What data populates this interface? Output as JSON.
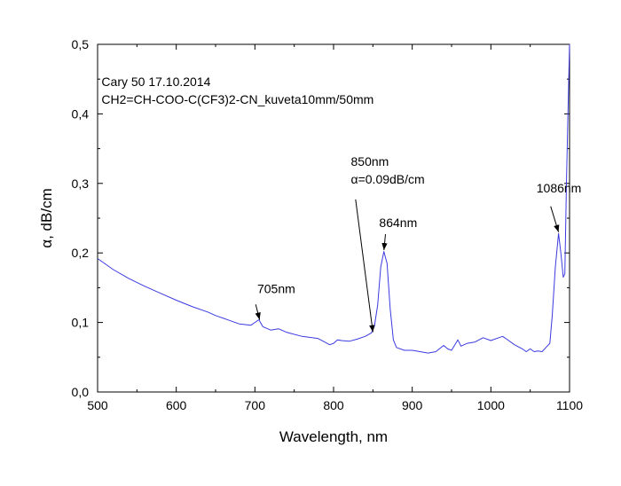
{
  "chart_data": {
    "type": "line",
    "title": "",
    "xlabel": "Wavelength, nm",
    "ylabel": "α, dB/cm",
    "xlim": [
      500,
      1100
    ],
    "ylim": [
      0.0,
      0.5
    ],
    "x_ticks": [
      500,
      600,
      700,
      800,
      900,
      1000,
      1100
    ],
    "x_tick_labels": [
      "500",
      "600",
      "700",
      "800",
      "900",
      "1000",
      "1100"
    ],
    "y_ticks": [
      0.0,
      0.1,
      0.2,
      0.3,
      0.4,
      0.5
    ],
    "y_tick_labels": [
      "0,0",
      "0,1",
      "0,2",
      "0,3",
      "0,4",
      "0,5"
    ],
    "grid": false,
    "legend": "none",
    "series": [
      {
        "name": "CH2=CH-COO-C(CF3)2-CN_kuveta10mm/50mm",
        "color": "#3a3ae0",
        "x": [
          500,
          520,
          540,
          560,
          580,
          600,
          620,
          640,
          650,
          655,
          660,
          680,
          695,
          700,
          705,
          710,
          720,
          730,
          740,
          760,
          780,
          795,
          800,
          805,
          810,
          820,
          830,
          840,
          848,
          852,
          856,
          860,
          864,
          868,
          872,
          876,
          880,
          890,
          900,
          910,
          920,
          930,
          940,
          945,
          950,
          958,
          962,
          970,
          980,
          990,
          1000,
          1010,
          1015,
          1020,
          1030,
          1040,
          1045,
          1050,
          1055,
          1060,
          1065,
          1070,
          1075,
          1078,
          1082,
          1086,
          1089,
          1092,
          1094,
          1096,
          1098,
          1100
        ],
        "values": [
          0.192,
          0.176,
          0.163,
          0.152,
          0.142,
          0.132,
          0.123,
          0.115,
          0.11,
          0.108,
          0.106,
          0.098,
          0.096,
          0.1,
          0.104,
          0.094,
          0.089,
          0.091,
          0.086,
          0.08,
          0.077,
          0.068,
          0.07,
          0.075,
          0.074,
          0.073,
          0.076,
          0.08,
          0.085,
          0.095,
          0.125,
          0.18,
          0.202,
          0.185,
          0.12,
          0.075,
          0.064,
          0.06,
          0.06,
          0.058,
          0.056,
          0.058,
          0.067,
          0.062,
          0.06,
          0.075,
          0.066,
          0.07,
          0.072,
          0.078,
          0.074,
          0.078,
          0.08,
          0.076,
          0.068,
          0.062,
          0.058,
          0.062,
          0.058,
          0.059,
          0.058,
          0.064,
          0.07,
          0.11,
          0.18,
          0.228,
          0.2,
          0.165,
          0.17,
          0.3,
          0.4,
          0.5
        ]
      }
    ],
    "annotations": [
      {
        "lines": [
          "Cary 50 17.10.2014",
          "CH2=CH-COO-C(CF3)2-CN_kuveta10mm/50mm"
        ],
        "x": 505,
        "y": 0.44,
        "arrow": null
      },
      {
        "lines": [
          "705nm"
        ],
        "x": 703,
        "y": 0.142,
        "arrow": {
          "from": [
            701,
            0.126
          ],
          "to": [
            706,
            0.104
          ]
        }
      },
      {
        "lines": [
          "864nm"
        ],
        "x": 858,
        "y": 0.237,
        "arrow": {
          "from": [
            866,
            0.227
          ],
          "to": [
            864,
            0.204
          ]
        }
      },
      {
        "lines": [
          "850nm",
          "α=0.09dB/cm"
        ],
        "x": 822,
        "y": 0.325,
        "arrow": {
          "from": [
            828,
            0.277
          ],
          "to": [
            850,
            0.086
          ]
        }
      },
      {
        "lines": [
          "1086nm"
        ],
        "x": 1058,
        "y": 0.287,
        "arrow": {
          "from": [
            1076,
            0.267
          ],
          "to": [
            1086,
            0.23
          ]
        }
      }
    ]
  }
}
